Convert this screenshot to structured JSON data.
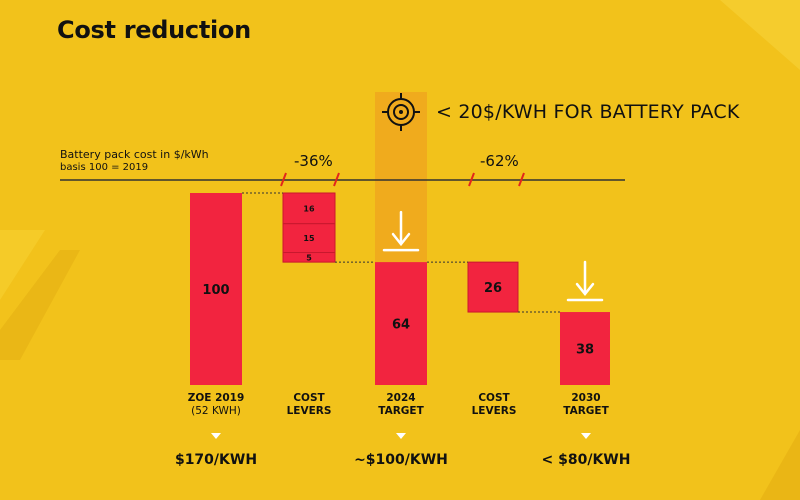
{
  "title": "Cost reduction",
  "target_note": "< 20$/KWH FOR BATTERY PACK",
  "basis_label": "Battery pack cost in $/kWh",
  "basis_sub": "basis 100 = 2019",
  "change_labels": [
    "-36%",
    "-62%"
  ],
  "categories": [
    {
      "line1": "ZOE 2019",
      "line2": "(52 KWH)"
    },
    {
      "line1": "COST",
      "line2": "LEVERS"
    },
    {
      "line1": "2024",
      "line2": "TARGET"
    },
    {
      "line1": "COST",
      "line2": "LEVERS"
    },
    {
      "line1": "2030",
      "line2": "TARGET"
    }
  ],
  "prices": [
    "$170/KWH",
    "~$100/KWH",
    "< $80/KWH"
  ],
  "colors": {
    "background": "#F2C21B",
    "bar": "#F2243F",
    "highlight": "#F0A81E",
    "arrow": "#FFFFFF"
  },
  "icons": [
    "target-icon",
    "down-arrow-icon"
  ],
  "chart_data": {
    "type": "waterfall",
    "ylim": [
      0,
      100
    ],
    "steps": [
      {
        "category": "ZOE 2019 (52 KWH)",
        "kind": "total",
        "value": 100
      },
      {
        "category": "COST LEVERS",
        "kind": "decrease",
        "segments": [
          16,
          15,
          5
        ]
      },
      {
        "category": "2024 TARGET",
        "kind": "total",
        "value": 64
      },
      {
        "category": "COST LEVERS",
        "kind": "decrease",
        "segments": [
          26
        ]
      },
      {
        "category": "2030 TARGET",
        "kind": "total",
        "value": 38
      }
    ]
  }
}
